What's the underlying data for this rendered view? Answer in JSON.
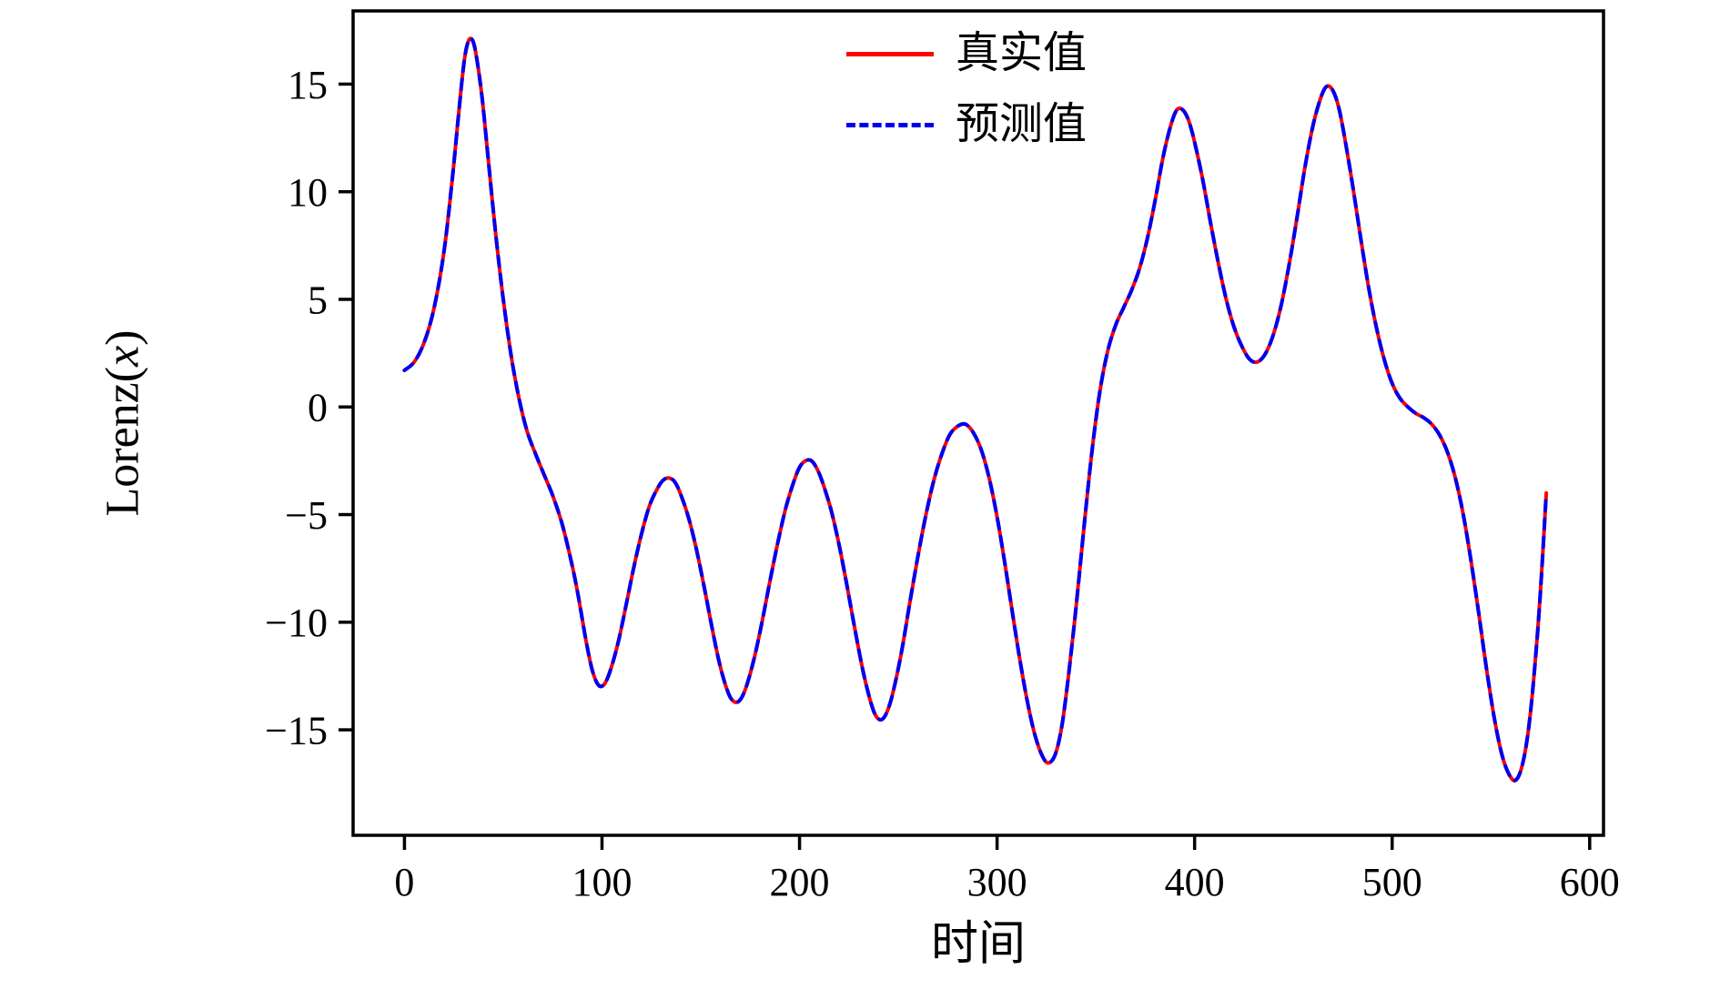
{
  "chart_data": {
    "type": "line",
    "title": "",
    "xlabel": "时间",
    "ylabel": "Lorenz(x)",
    "ylabel_parts": {
      "prefix": "Lorenz(",
      "var": "x",
      "suffix": ")"
    },
    "xlim": [
      -26,
      607
    ],
    "ylim": [
      -19.9,
      18.4
    ],
    "xticks": [
      0,
      100,
      200,
      300,
      400,
      500,
      600
    ],
    "yticks": [
      -15,
      -10,
      -5,
      0,
      5,
      10,
      15
    ],
    "grid": false,
    "legend_position": "upper center inside",
    "frame_color": "#000000",
    "background_color": "#ffffff",
    "x": [
      0,
      5,
      10,
      15,
      20,
      24,
      27,
      30,
      32,
      34,
      36,
      39,
      42,
      46,
      50,
      54,
      58,
      62,
      66,
      70,
      75,
      80,
      85,
      88,
      92,
      95,
      98,
      101,
      104,
      108,
      112,
      116,
      120,
      124,
      128,
      131,
      134,
      137,
      140,
      144,
      148,
      152,
      156,
      160,
      164,
      167,
      170,
      173,
      177,
      181,
      185,
      189,
      193,
      197,
      200,
      203,
      206,
      209,
      212,
      216,
      220,
      224,
      228,
      232,
      236,
      239,
      242,
      245,
      248,
      252,
      256,
      260,
      264,
      268,
      272,
      276,
      280,
      284,
      288,
      292,
      296,
      300,
      304,
      308,
      312,
      316,
      320,
      324,
      327,
      330,
      333,
      336,
      340,
      344,
      348,
      352,
      356,
      360,
      364,
      368,
      372,
      376,
      380,
      384,
      388,
      391,
      394,
      397,
      400,
      404,
      408,
      412,
      416,
      420,
      424,
      428,
      432,
      436,
      440,
      444,
      448,
      452,
      456,
      460,
      464,
      467,
      470,
      473,
      476,
      480,
      484,
      488,
      492,
      496,
      500,
      504,
      508,
      512,
      516,
      520,
      524,
      528,
      532,
      536,
      540,
      544,
      548,
      552,
      556,
      560,
      563,
      566,
      569,
      572,
      575,
      578
    ],
    "series": [
      {
        "name": "真实值",
        "color": "#ff0000",
        "style": "solid",
        "values": [
          1.7,
          2.1,
          3.0,
          4.6,
          7.2,
          10.4,
          13.2,
          15.9,
          16.9,
          17.1,
          16.5,
          14.6,
          11.9,
          8.2,
          5.0,
          2.4,
          0.4,
          -1.1,
          -2.1,
          -3.0,
          -4.1,
          -5.5,
          -7.4,
          -8.8,
          -10.9,
          -12.2,
          -12.9,
          -12.9,
          -12.3,
          -11.0,
          -9.3,
          -7.5,
          -5.9,
          -4.6,
          -3.8,
          -3.4,
          -3.3,
          -3.5,
          -4.1,
          -5.2,
          -6.7,
          -8.5,
          -10.4,
          -12.1,
          -13.3,
          -13.7,
          -13.6,
          -13.0,
          -11.7,
          -10.0,
          -8.1,
          -6.3,
          -4.7,
          -3.5,
          -2.8,
          -2.5,
          -2.5,
          -2.9,
          -3.6,
          -4.8,
          -6.4,
          -8.3,
          -10.3,
          -12.2,
          -13.7,
          -14.4,
          -14.5,
          -14.0,
          -13.0,
          -11.2,
          -9.0,
          -6.9,
          -5.0,
          -3.4,
          -2.2,
          -1.3,
          -0.9,
          -0.8,
          -1.2,
          -2.0,
          -3.3,
          -5.1,
          -7.3,
          -9.7,
          -12.0,
          -14.0,
          -15.5,
          -16.4,
          -16.5,
          -16.0,
          -14.7,
          -12.6,
          -9.3,
          -5.6,
          -2.1,
          0.7,
          2.6,
          3.8,
          4.6,
          5.4,
          6.4,
          7.8,
          9.6,
          11.6,
          13.1,
          13.8,
          13.8,
          13.3,
          12.3,
          10.6,
          8.6,
          6.7,
          5.0,
          3.7,
          2.8,
          2.2,
          2.1,
          2.5,
          3.4,
          4.8,
          6.7,
          8.9,
          11.2,
          13.1,
          14.4,
          14.9,
          14.7,
          13.9,
          12.5,
          10.3,
          7.9,
          5.6,
          3.7,
          2.2,
          1.1,
          0.4,
          0.0,
          -0.3,
          -0.5,
          -0.8,
          -1.3,
          -2.1,
          -3.3,
          -5.0,
          -7.2,
          -9.7,
          -12.3,
          -14.6,
          -16.3,
          -17.2,
          -17.3,
          -16.6,
          -15.0,
          -12.3,
          -8.7,
          -4.0
        ]
      },
      {
        "name": "预测值",
        "color": "#0000ee",
        "style": "dashed",
        "values": [
          1.7,
          2.1,
          3.0,
          4.6,
          7.2,
          10.4,
          13.2,
          15.9,
          16.9,
          17.1,
          16.5,
          14.6,
          11.9,
          8.2,
          5.0,
          2.4,
          0.4,
          -1.1,
          -2.1,
          -3.0,
          -4.1,
          -5.5,
          -7.4,
          -8.8,
          -10.9,
          -12.2,
          -12.9,
          -12.9,
          -12.3,
          -11.0,
          -9.3,
          -7.5,
          -5.9,
          -4.6,
          -3.8,
          -3.4,
          -3.3,
          -3.5,
          -4.1,
          -5.2,
          -6.7,
          -8.5,
          -10.4,
          -12.1,
          -13.3,
          -13.7,
          -13.6,
          -13.0,
          -11.7,
          -10.0,
          -8.1,
          -6.3,
          -4.7,
          -3.5,
          -2.8,
          -2.5,
          -2.5,
          -2.9,
          -3.6,
          -4.8,
          -6.4,
          -8.3,
          -10.3,
          -12.2,
          -13.7,
          -14.4,
          -14.5,
          -14.0,
          -13.0,
          -11.2,
          -9.0,
          -6.9,
          -5.0,
          -3.4,
          -2.2,
          -1.3,
          -0.9,
          -0.8,
          -1.2,
          -2.0,
          -3.3,
          -5.1,
          -7.3,
          -9.7,
          -12.0,
          -14.0,
          -15.5,
          -16.4,
          -16.5,
          -16.0,
          -14.7,
          -12.6,
          -9.3,
          -5.6,
          -2.1,
          0.7,
          2.6,
          3.8,
          4.6,
          5.4,
          6.4,
          7.8,
          9.6,
          11.6,
          13.1,
          13.8,
          13.8,
          13.3,
          12.3,
          10.6,
          8.6,
          6.7,
          5.0,
          3.7,
          2.8,
          2.2,
          2.1,
          2.5,
          3.4,
          4.8,
          6.7,
          8.9,
          11.2,
          13.1,
          14.4,
          14.9,
          14.7,
          13.9,
          12.5,
          10.3,
          7.9,
          5.6,
          3.7,
          2.2,
          1.1,
          0.4,
          0.0,
          -0.3,
          -0.5,
          -0.8,
          -1.3,
          -2.1,
          -3.3,
          -5.0,
          -7.2,
          -9.7,
          -12.3,
          -14.6,
          -16.3,
          -17.2,
          -17.3,
          -16.6,
          -15.0,
          -12.3,
          -8.7,
          -4.0
        ]
      }
    ]
  }
}
